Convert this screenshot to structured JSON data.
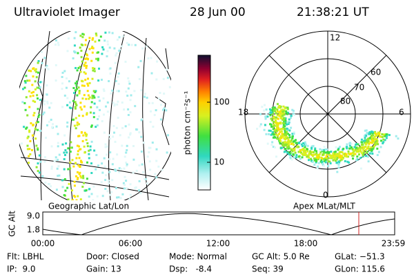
{
  "header": {
    "title": "Ultraviolet Imager",
    "date": "28 Jun 00",
    "time": "21:38:21 UT"
  },
  "colorbar": {
    "label": "photon cm⁻²s⁻¹",
    "ticks": [
      "100",
      "10"
    ]
  },
  "polar": {
    "mlt_labels": [
      "12",
      "18",
      "6",
      "0"
    ],
    "mlat_labels": [
      "60",
      "70",
      "80"
    ]
  },
  "captions": {
    "left": "Geographic Lat/Lon",
    "right": "Apex MLat/MLT"
  },
  "altitude_plot": {
    "ylabel": "GC Alt",
    "yticks": [
      "9.0",
      "1.8"
    ],
    "xticks": [
      "00:00",
      "06:00",
      "12:00",
      "18:00",
      "23:59"
    ]
  },
  "footer": {
    "rows": [
      [
        "Flt: LBHL",
        "Door: Closed",
        "Mode: Normal",
        "GC Alt: 5.0 Re",
        "GLat: −51.3"
      ],
      [
        "IP:  9.0",
        "Gain: 13",
        "Dsp:   -8.4",
        "Seq: 39",
        "GLon: 115.6"
      ]
    ]
  }
}
